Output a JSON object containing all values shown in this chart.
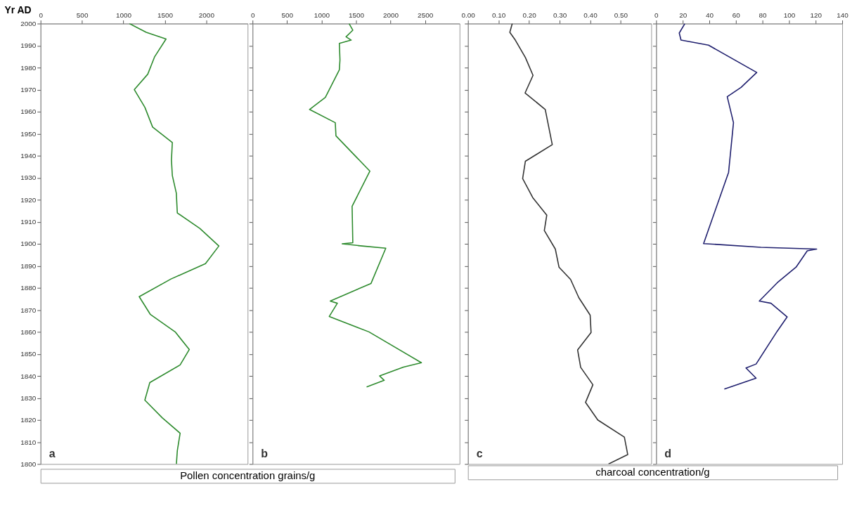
{
  "chart_data": [
    {
      "type": "line",
      "ylabel": "Yr AD",
      "xlabel": "Pollen concentration grains/g",
      "xlim": [
        0,
        2500
      ],
      "xticks": [
        0,
        500,
        1000,
        1500,
        2000
      ],
      "ylim": [
        1800,
        2000
      ],
      "yticks": [
        1800,
        1810,
        1820,
        1830,
        1840,
        1850,
        1860,
        1870,
        1880,
        1890,
        1900,
        1910,
        1920,
        1930,
        1940,
        1950,
        1960,
        1970,
        1980,
        1990,
        2000
      ],
      "annotations": [
        "a"
      ],
      "series": [
        {
          "color": "#2e8b2e",
          "x": [
            1072,
            1276,
            1515,
            1378,
            1294,
            1132,
            1259,
            1353,
            1591,
            1580,
            1591,
            1639,
            1651,
            1923,
            2153,
            1991,
            1574,
            1191,
            1324,
            1625,
            1796,
            1685,
            1319,
            1259,
            1469,
            1685,
            1651,
            1640
          ],
          "values": [
            2000,
            1996,
            1993,
            1985,
            1977,
            1970,
            1962,
            1953,
            1946,
            1938,
            1931,
            1923,
            1914,
            1907,
            1899,
            1891,
            1884,
            1876,
            1868,
            1860,
            1852,
            1845,
            1837,
            1829,
            1821,
            1814,
            1806,
            1800
          ]
        }
      ]
    },
    {
      "type": "line",
      "xlim": [
        0,
        3000
      ],
      "xticks": [
        0,
        500,
        1000,
        1500,
        2000,
        2500
      ],
      "ylim": [
        1800,
        2000
      ],
      "yticks": [
        1800,
        1810,
        1820,
        1830,
        1840,
        1850,
        1860,
        1870,
        1880,
        1890,
        1900,
        1910,
        1920,
        1930,
        1940,
        1950,
        1960,
        1970,
        1980,
        1990,
        2000
      ],
      "tick_labels": "x",
      "annotations": [
        "b"
      ],
      "series": [
        {
          "color": "#2e8b2e",
          "x": [
            1399,
            1453,
            1355,
            1430,
            1258,
            1267,
            1258,
            1055,
            826,
            1199,
            1209,
            1700,
            1443,
            1453,
            1298,
            1587,
            1931,
            1717,
            1126,
            1229,
            1112,
            1687,
            2447,
            2187,
            1842,
            1908,
            1653
          ],
          "values": [
            2000,
            1997,
            1994,
            1992.5,
            1991,
            1983.5,
            1979,
            1966.5,
            1961,
            1955,
            1949,
            1933,
            1917,
            1900.5,
            1900,
            1899,
            1898,
            1882,
            1874,
            1873,
            1867,
            1860,
            1846,
            1844,
            1840,
            1838,
            1835
          ]
        }
      ]
    },
    {
      "type": "line",
      "xlabel": "charcoal concentration/g",
      "xlim": [
        0,
        0.6
      ],
      "xticks": [
        {
          "value": 0,
          "label": "0.00"
        },
        {
          "value": 0.1,
          "label": "0.10"
        },
        {
          "value": 0.2,
          "label": "0.20"
        },
        {
          "value": 0.3,
          "label": "0.30"
        },
        {
          "value": 0.4,
          "label": "0.40"
        },
        {
          "value": 0.5,
          "label": "0.50"
        }
      ],
      "ylim": [
        1800,
        2000
      ],
      "yticks": [
        1800,
        1810,
        1820,
        1830,
        1840,
        1850,
        1860,
        1870,
        1880,
        1890,
        1900,
        1910,
        1920,
        1930,
        1940,
        1950,
        1960,
        1970,
        1980,
        1990,
        2000
      ],
      "tick_labels": "x",
      "annotations": [
        "c"
      ],
      "series": [
        {
          "color": "#333333",
          "x": [
            0.145,
            0.137,
            0.155,
            0.188,
            0.213,
            0.187,
            0.253,
            0.276,
            0.188,
            0.179,
            0.212,
            0.258,
            0.25,
            0.286,
            0.298,
            0.336,
            0.363,
            0.4,
            0.403,
            0.359,
            0.369,
            0.409,
            0.385,
            0.425,
            0.512,
            0.523,
            0.46
          ],
          "values": [
            2000,
            1996,
            1992.5,
            1984.6,
            1976.5,
            1968.5,
            1961,
            1945,
            1937.5,
            1929.6,
            1921,
            1913,
            1906,
            1897.6,
            1889.4,
            1883.8,
            1875.5,
            1867.6,
            1859.7,
            1851.8,
            1843.9,
            1836,
            1828,
            1820,
            1812.2,
            1804.3,
            1800
          ]
        }
      ]
    },
    {
      "type": "line",
      "xlim": [
        0,
        140
      ],
      "xticks": [
        0,
        20,
        40,
        60,
        80,
        100,
        120,
        140
      ],
      "ylim": [
        1800,
        2000
      ],
      "yticks": [
        1800,
        1810,
        1820,
        1830,
        1840,
        1850,
        1860,
        1870,
        1880,
        1890,
        1900,
        1910,
        1920,
        1930,
        1940,
        1950,
        1960,
        1970,
        1980,
        1990,
        2000
      ],
      "tick_labels": "x",
      "annotations": [
        "d"
      ],
      "series": [
        {
          "color": "#1f1f6e",
          "x": [
            21.6,
            17.4,
            18.7,
            39.4,
            75.7,
            63.9,
            53.5,
            58.2,
            54.5,
            35.7,
            78.9,
            120.8,
            113.7,
            105.3,
            91.1,
            77.6,
            86.4,
            98.6,
            91.1,
            75.2,
            67.6,
            75.2,
            51.3
          ],
          "values": [
            2000,
            1995.7,
            1992.5,
            1990.2,
            1977.8,
            1971,
            1966.8,
            1955,
            1932.4,
            1900.1,
            1898.4,
            1897.6,
            1896.8,
            1889.4,
            1882.3,
            1874,
            1873,
            1866.8,
            1860.3,
            1845.4,
            1843.6,
            1839,
            1834
          ]
        }
      ]
    }
  ]
}
